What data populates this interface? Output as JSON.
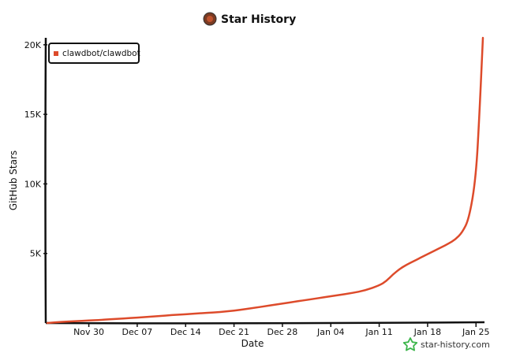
{
  "chart_data": {
    "type": "line",
    "title": "Star History",
    "xlabel": "Date",
    "ylabel": "GitHub Stars",
    "x_tick_labels": [
      "Nov 30",
      "Dec 07",
      "Dec 14",
      "Dec 21",
      "Dec 28",
      "Jan 04",
      "Jan 11",
      "Jan 18",
      "Jan 25"
    ],
    "y_tick_labels": [
      "5K",
      "10K",
      "15K",
      "20K"
    ],
    "y_ticks": [
      5000,
      10000,
      15000,
      20000
    ],
    "ylim": [
      0,
      20500
    ],
    "grid": false,
    "legend_placement": "top-left",
    "series": [
      {
        "name": "clawdbot/clawdbot",
        "color": "#dd4b2b",
        "x": [
          "Nov 24",
          "Nov 26",
          "Nov 28",
          "Nov 30",
          "Dec 02",
          "Dec 04",
          "Dec 06",
          "Dec 08",
          "Dec 10",
          "Dec 12",
          "Dec 14",
          "Dec 16",
          "Dec 18",
          "Dec 20",
          "Dec 22",
          "Dec 24",
          "Dec 26",
          "Dec 28",
          "Dec 30",
          "Jan 01",
          "Jan 03",
          "Jan 05",
          "Jan 07",
          "Jan 09",
          "Jan 11",
          "Jan 12",
          "Jan 13",
          "Jan 14",
          "Jan 15",
          "Jan 16",
          "Jan 17",
          "Jan 18",
          "Jan 19",
          "Jan 20",
          "Jan 21",
          "Jan 22",
          "Jan 23",
          "Jan 24",
          "Jan 25",
          "Jan 25.5",
          "Jan 26"
        ],
        "y": [
          0,
          80,
          130,
          180,
          230,
          300,
          360,
          420,
          500,
          570,
          630,
          700,
          760,
          830,
          950,
          1100,
          1250,
          1400,
          1550,
          1700,
          1850,
          2000,
          2150,
          2350,
          2700,
          3000,
          3500,
          3900,
          4200,
          4450,
          4700,
          4950,
          5200,
          5450,
          5700,
          6000,
          6500,
          7500,
          10500,
          15000,
          20500
        ]
      }
    ],
    "legend": {
      "entries": [
        "clawdbot/clawdbot"
      ]
    },
    "watermark": "star-history.com"
  }
}
